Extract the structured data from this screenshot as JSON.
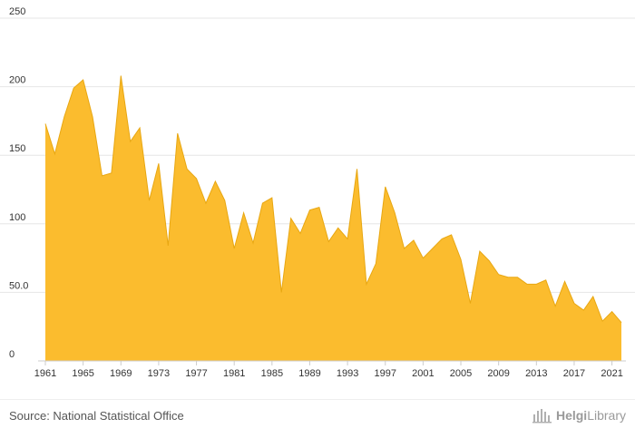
{
  "chart_data": {
    "type": "area",
    "x": [
      1961,
      1962,
      1963,
      1964,
      1965,
      1966,
      1967,
      1968,
      1969,
      1970,
      1971,
      1972,
      1973,
      1974,
      1975,
      1976,
      1977,
      1978,
      1979,
      1980,
      1981,
      1982,
      1983,
      1984,
      1985,
      1986,
      1987,
      1988,
      1989,
      1990,
      1991,
      1992,
      1993,
      1994,
      1995,
      1996,
      1997,
      1998,
      1999,
      2000,
      2001,
      2002,
      2003,
      2004,
      2005,
      2006,
      2007,
      2008,
      2009,
      2010,
      2011,
      2012,
      2013,
      2014,
      2015,
      2016,
      2017,
      2018,
      2019,
      2020,
      2021,
      2022
    ],
    "series": [
      {
        "values": [
          173,
          151,
          178,
          199,
          205,
          178,
          135,
          137,
          208,
          160,
          170,
          117,
          144,
          84,
          166,
          140,
          133,
          115,
          131,
          117,
          82,
          108,
          86,
          115,
          119,
          50,
          104,
          93,
          110,
          112,
          87,
          97,
          89,
          140,
          56,
          71,
          127,
          108,
          82,
          88,
          75,
          82,
          89,
          92,
          74,
          42,
          80,
          73,
          63,
          61,
          61,
          56,
          56,
          59,
          40,
          58,
          42,
          37,
          47,
          29,
          36,
          28
        ]
      }
    ],
    "xticks": [
      1961,
      1965,
      1969,
      1973,
      1977,
      1981,
      1985,
      1989,
      1993,
      1997,
      2001,
      2005,
      2009,
      2013,
      2017,
      2021
    ],
    "yticks": [
      0,
      50,
      100,
      150,
      200,
      250
    ],
    "ytick_labels": [
      "0",
      "50.0",
      "100",
      "150",
      "200",
      "250"
    ],
    "ylim": [
      0,
      250
    ],
    "title": "",
    "xlabel": "",
    "ylabel": "",
    "grid": true,
    "legend": "none",
    "colors": {
      "fill": "#fbbc2e",
      "stroke": "#e8a712",
      "grid": "#e6e6e6",
      "axis": "#cccccc"
    }
  },
  "footer": {
    "source": "Source: National Statistical Office",
    "brand_name": "Helgi",
    "brand_suffix": "Library",
    "brand_icon": "helgi-library-icon"
  }
}
